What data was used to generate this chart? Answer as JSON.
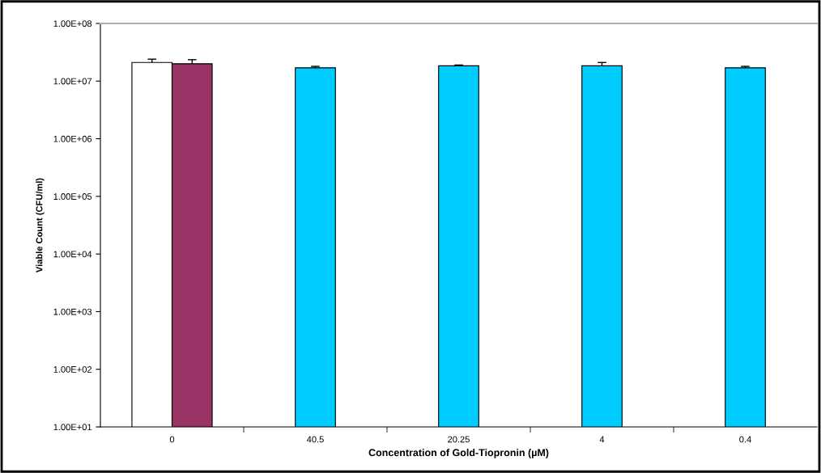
{
  "chart_data": {
    "type": "bar",
    "xlabel": "Concentration of Gold-Tiopronin (µM)",
    "ylabel": "Viable Count (CFU/ml)",
    "categories": [
      "0",
      "40.5",
      "20.25",
      "4",
      "0.4"
    ],
    "series": [
      {
        "color": "#ffffff",
        "values": [
          21000000.0,
          null,
          null,
          null,
          null
        ],
        "errors": [
          [
            21000000.0,
            24000000.0
          ],
          null,
          null,
          null,
          null
        ]
      },
      {
        "color": "#993366",
        "values": [
          20000000.0,
          null,
          null,
          null,
          null
        ],
        "errors": [
          [
            20000000.0,
            23500000.0
          ],
          null,
          null,
          null,
          null
        ]
      },
      {
        "color": "#00ccff",
        "values": [
          null,
          17000000.0,
          18400000.0,
          18400000.0,
          17000000.0
        ],
        "errors": [
          null,
          [
            17000000.0,
            18000000.0
          ],
          [
            18400000.0,
            19000000.0
          ],
          [
            18400000.0,
            21000000.0
          ],
          [
            17000000.0,
            18000000.0
          ]
        ]
      }
    ],
    "log": "y",
    "ylim": [
      10,
      100000000.0
    ],
    "yticks": [
      {
        "value": 10,
        "label": "1.00E+01"
      },
      {
        "value": 100,
        "label": "1.00E+02"
      },
      {
        "value": 1000,
        "label": "1.00E+03"
      },
      {
        "value": 10000,
        "label": "1.00E+04"
      },
      {
        "value": 100000,
        "label": "1.00E+05"
      },
      {
        "value": 1000000,
        "label": "1.00E+06"
      },
      {
        "value": 10000000,
        "label": "1.00E+07"
      },
      {
        "value": 100000000,
        "label": "1.00E+08"
      }
    ],
    "grid": false,
    "legend": false
  }
}
